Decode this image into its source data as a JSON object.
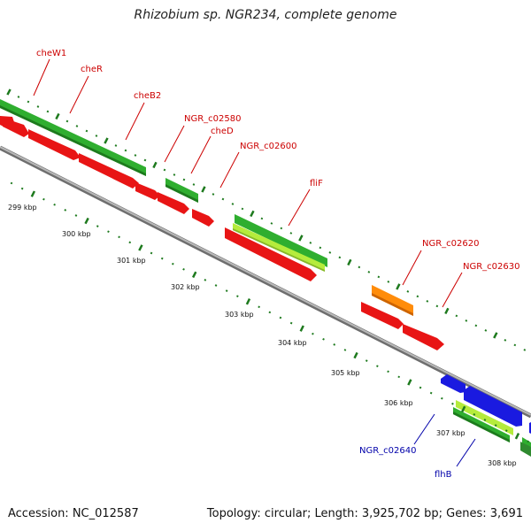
{
  "title": "Rhizobium sp. NGR234, complete genome",
  "footer": {
    "accession": "Accession: NC_012587",
    "topology": "Topology: circular; Length: 3,925,702 bp; Genes: 3,691"
  },
  "colors": {
    "background": "#ffffff",
    "backbone": "#8c8c8c",
    "tick": "#1e7a1e",
    "cds_forward": "#e81515",
    "cds_reverse": "#1a1ae0",
    "gene_forward": "#2fae2f",
    "gene_fliF": "#b5ec3c",
    "gene_orange": "#ff8c0a",
    "label_forward": "#cc0000",
    "label_reverse": "#0000aa"
  },
  "scale_labels": [
    "299 kbp",
    "300 kbp",
    "301 kbp",
    "302 kbp",
    "303 kbp",
    "304 kbp",
    "305 kbp",
    "306 kbp",
    "307 kbp",
    "308 kbp"
  ],
  "gene_labels": [
    {
      "id": "cheW1",
      "text": "cheW1",
      "strand": "forward"
    },
    {
      "id": "cheR",
      "text": "cheR",
      "strand": "forward"
    },
    {
      "id": "cheB2",
      "text": "cheB2",
      "strand": "forward"
    },
    {
      "id": "NGR_c02580",
      "text": "NGR_c02580",
      "strand": "forward"
    },
    {
      "id": "cheD",
      "text": "cheD",
      "strand": "forward"
    },
    {
      "id": "NGR_c02600",
      "text": "NGR_c02600",
      "strand": "forward"
    },
    {
      "id": "fliF",
      "text": "fliF",
      "strand": "forward"
    },
    {
      "id": "NGR_c02620",
      "text": "NGR_c02620",
      "strand": "forward"
    },
    {
      "id": "NGR_c02630",
      "text": "NGR_c02630",
      "strand": "forward"
    },
    {
      "id": "NGR_c02640",
      "text": "NGR_c02640",
      "strand": "reverse"
    },
    {
      "id": "flhB",
      "text": "flhB",
      "strand": "reverse"
    }
  ]
}
